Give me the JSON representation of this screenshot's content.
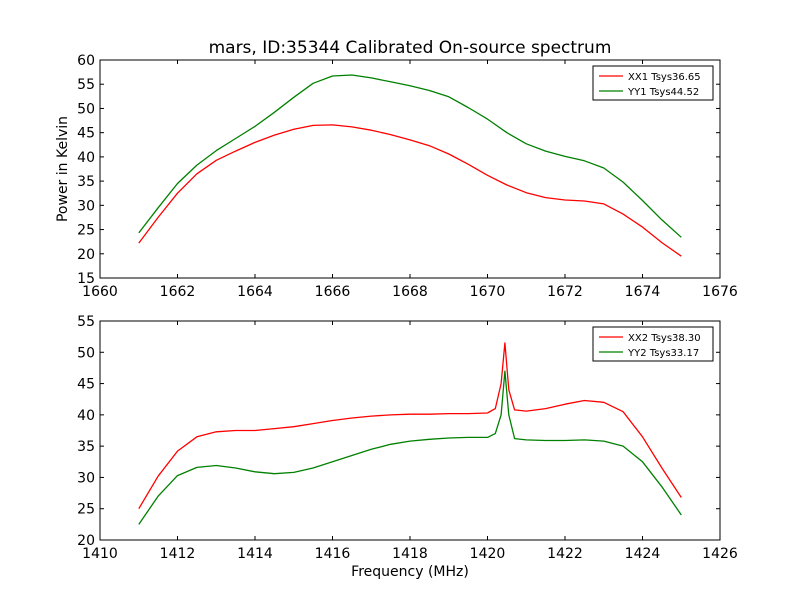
{
  "figure": {
    "title": "mars, ID:35344 Calibrated On-source spectrum"
  },
  "chart_data": [
    {
      "type": "line",
      "title": "mars, ID:35344 Calibrated On-source spectrum",
      "xlabel": "",
      "ylabel": "Power in Kelvin",
      "xlim": [
        1660,
        1676
      ],
      "ylim": [
        15,
        60
      ],
      "xticks": [
        1660,
        1662,
        1664,
        1666,
        1668,
        1670,
        1672,
        1674,
        1676
      ],
      "yticks": [
        15,
        20,
        25,
        30,
        35,
        40,
        45,
        50,
        55,
        60
      ],
      "grid": false,
      "legend": "top-right",
      "series": [
        {
          "name": "XX1 Tsys36.65",
          "color": "#ff0000",
          "x": [
            1661.0,
            1661.5,
            1662.0,
            1662.5,
            1663.0,
            1663.5,
            1664.0,
            1664.5,
            1665.0,
            1665.5,
            1666.0,
            1666.5,
            1667.0,
            1667.5,
            1668.0,
            1668.5,
            1669.0,
            1669.5,
            1670.0,
            1670.5,
            1671.0,
            1671.5,
            1672.0,
            1672.5,
            1673.0,
            1673.5,
            1674.0,
            1674.5,
            1675.0
          ],
          "y": [
            22.2,
            27.5,
            32.5,
            36.5,
            39.3,
            41.2,
            43.0,
            44.5,
            45.7,
            46.5,
            46.6,
            46.2,
            45.5,
            44.6,
            43.5,
            42.3,
            40.6,
            38.5,
            36.2,
            34.2,
            32.6,
            31.6,
            31.1,
            30.9,
            30.3,
            28.2,
            25.5,
            22.3,
            19.5
          ]
        },
        {
          "name": "YY1 Tsys44.52",
          "color": "#008000",
          "x": [
            1661.0,
            1661.5,
            1662.0,
            1662.5,
            1663.0,
            1663.5,
            1664.0,
            1664.5,
            1665.0,
            1665.5,
            1666.0,
            1666.5,
            1667.0,
            1667.5,
            1668.0,
            1668.5,
            1669.0,
            1669.5,
            1670.0,
            1670.5,
            1671.0,
            1671.5,
            1672.0,
            1672.5,
            1673.0,
            1673.5,
            1674.0,
            1674.5,
            1675.0
          ],
          "y": [
            24.3,
            29.5,
            34.5,
            38.3,
            41.3,
            43.8,
            46.3,
            49.2,
            52.3,
            55.2,
            56.7,
            56.9,
            56.3,
            55.5,
            54.7,
            53.7,
            52.4,
            50.2,
            47.8,
            45.0,
            42.7,
            41.2,
            40.1,
            39.2,
            37.7,
            34.8,
            31.0,
            27.0,
            23.4
          ]
        }
      ]
    },
    {
      "type": "line",
      "title": "",
      "xlabel": "Frequency (MHz)",
      "ylabel": "",
      "xlim": [
        1410,
        1426
      ],
      "ylim": [
        20,
        55
      ],
      "xticks": [
        1410,
        1412,
        1414,
        1416,
        1418,
        1420,
        1422,
        1424,
        1426
      ],
      "yticks": [
        20,
        25,
        30,
        35,
        40,
        45,
        50,
        55
      ],
      "grid": false,
      "legend": "top-right",
      "series": [
        {
          "name": "XX2 Tsys38.30",
          "color": "#ff0000",
          "x": [
            1411.0,
            1411.5,
            1412.0,
            1412.5,
            1413.0,
            1413.5,
            1414.0,
            1414.5,
            1415.0,
            1415.5,
            1416.0,
            1416.5,
            1417.0,
            1417.5,
            1418.0,
            1418.5,
            1419.0,
            1419.5,
            1420.0,
            1420.2,
            1420.35,
            1420.45,
            1420.55,
            1420.7,
            1421.0,
            1421.5,
            1422.0,
            1422.5,
            1423.0,
            1423.5,
            1424.0,
            1424.5,
            1425.0
          ],
          "y": [
            25.0,
            30.2,
            34.2,
            36.5,
            37.3,
            37.5,
            37.5,
            37.8,
            38.1,
            38.6,
            39.1,
            39.5,
            39.8,
            40.0,
            40.1,
            40.1,
            40.2,
            40.2,
            40.3,
            41.0,
            45.0,
            51.5,
            44.0,
            40.8,
            40.6,
            41.0,
            41.7,
            42.3,
            42.0,
            40.5,
            36.5,
            31.5,
            26.8
          ]
        },
        {
          "name": "YY2 Tsys33.17",
          "color": "#008000",
          "x": [
            1411.0,
            1411.5,
            1412.0,
            1412.5,
            1413.0,
            1413.5,
            1414.0,
            1414.5,
            1415.0,
            1415.5,
            1416.0,
            1416.5,
            1417.0,
            1417.5,
            1418.0,
            1418.5,
            1419.0,
            1419.5,
            1420.0,
            1420.2,
            1420.35,
            1420.45,
            1420.55,
            1420.7,
            1421.0,
            1421.5,
            1422.0,
            1422.5,
            1423.0,
            1423.5,
            1424.0,
            1424.5,
            1425.0
          ],
          "y": [
            22.5,
            27.0,
            30.3,
            31.6,
            31.9,
            31.5,
            30.9,
            30.6,
            30.8,
            31.5,
            32.5,
            33.5,
            34.5,
            35.3,
            35.8,
            36.1,
            36.3,
            36.4,
            36.4,
            37.0,
            40.0,
            47.0,
            40.0,
            36.2,
            36.0,
            35.9,
            35.9,
            36.0,
            35.8,
            35.0,
            32.5,
            28.5,
            24.0
          ]
        }
      ]
    }
  ]
}
